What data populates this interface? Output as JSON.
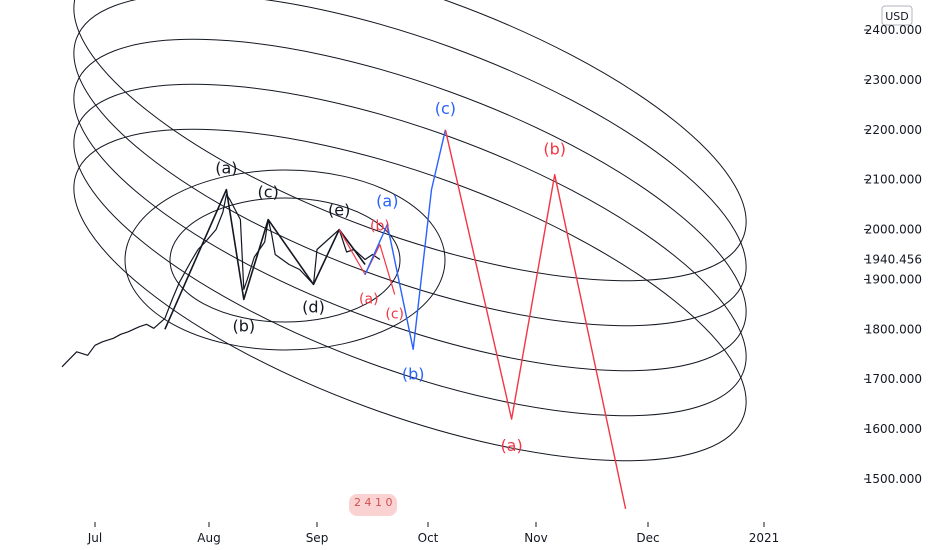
{
  "chart_data": {
    "type": "line",
    "currency": "USD",
    "last_price": "1940.456",
    "price_axis_labels": [
      "2400.000",
      "2300.000",
      "2200.000",
      "2100.000",
      "2000.000",
      "1900.000",
      "1800.000",
      "1700.000",
      "1600.000",
      "1500.000"
    ],
    "time_axis_labels": [
      "Jul",
      "Aug",
      "Sep",
      "Oct",
      "Nov",
      "Dec",
      "2021"
    ],
    "ylim": [
      1425,
      2435
    ],
    "colors": {
      "price": "#131722",
      "circles": "#131722",
      "black_wave": "#131722",
      "blue_wave": "#2962ff",
      "red_wave": "#f23645",
      "axis_text": "#131722"
    },
    "black_wave_labels": [
      "(a)",
      "(b)",
      "(c)",
      "(d)",
      "(e)"
    ],
    "red_small_labels": [
      "(a)",
      "(b)",
      "(c)"
    ],
    "blue_wave_labels": [
      "(a)",
      "(b)",
      "(c)"
    ],
    "red_wave_labels": [
      "(a)",
      "(b)"
    ],
    "watermark_text": "2 4 1 0",
    "series": [
      {
        "name": "price",
        "points": [
          [
            "Jun 22",
            1725
          ],
          [
            "Jun 24",
            1740
          ],
          [
            "Jun 26",
            1755
          ],
          [
            "Jun 29",
            1748
          ],
          [
            "Jul 1",
            1768
          ],
          [
            "Jul 3",
            1775
          ],
          [
            "Jul 6",
            1782
          ],
          [
            "Jul 8",
            1790
          ],
          [
            "Jul 10",
            1795
          ],
          [
            "Jul 13",
            1805
          ],
          [
            "Jul 15",
            1810
          ],
          [
            "Jul 17",
            1802
          ],
          [
            "Jul 20",
            1822
          ],
          [
            "Jul 22",
            1860
          ],
          [
            "Jul 24",
            1895
          ],
          [
            "Jul 27",
            1935
          ],
          [
            "Jul 29",
            1960
          ],
          [
            "Jul 31",
            1975
          ],
          [
            "Aug 3",
            2000
          ],
          [
            "Aug 5",
            2035
          ],
          [
            "Aug 6",
            2070
          ],
          [
            "Aug 7",
            2060
          ],
          [
            "Aug 10",
            2020
          ],
          [
            "Aug 11",
            1880
          ],
          [
            "Aug 12",
            1900
          ],
          [
            "Aug 14",
            1945
          ],
          [
            "Aug 17",
            1975
          ],
          [
            "Aug 18",
            2020
          ],
          [
            "Aug 19",
            1990
          ],
          [
            "Aug 20",
            1950
          ],
          [
            "Aug 24",
            1930
          ],
          [
            "Aug 27",
            1920
          ],
          [
            "Aug 31",
            1890
          ],
          [
            "Sep 1",
            1960
          ],
          [
            "Sep 4",
            1980
          ],
          [
            "Sep 7",
            2000
          ],
          [
            "Sep 9",
            1955
          ],
          [
            "Sep 11",
            1960
          ],
          [
            "Sep 14",
            1940
          ],
          [
            "Sep 16",
            1950
          ],
          [
            "Sep 18",
            1940
          ]
        ]
      },
      {
        "name": "black-wave",
        "points": [
          [
            "Jul 20",
            1800
          ],
          [
            "Aug 6",
            2080
          ],
          [
            "Aug 11",
            1860
          ],
          [
            "Aug 18",
            2020
          ],
          [
            "Aug 31",
            1890
          ],
          [
            "Sep 7",
            2000
          ],
          [
            "Sep 14",
            1930
          ]
        ]
      },
      {
        "name": "red-small-wave",
        "points": [
          [
            "Sep 7",
            2000
          ],
          [
            "Sep 14",
            1910
          ],
          [
            "Sep 18",
            1970
          ],
          [
            "Sep 22",
            1870
          ]
        ]
      },
      {
        "name": "blue-wave",
        "points": [
          [
            "Sep 14",
            1910
          ],
          [
            "Sep 20",
            2010
          ],
          [
            "Sep 27",
            1760
          ],
          [
            "Oct 2",
            2080
          ],
          [
            "Oct 6",
            2200
          ]
        ]
      },
      {
        "name": "red-wave",
        "points": [
          [
            "Oct 6",
            2200
          ],
          [
            "Oct 25",
            1620
          ],
          [
            "Nov 6",
            2110
          ],
          [
            "Nov 25",
            1440
          ]
        ]
      }
    ]
  }
}
